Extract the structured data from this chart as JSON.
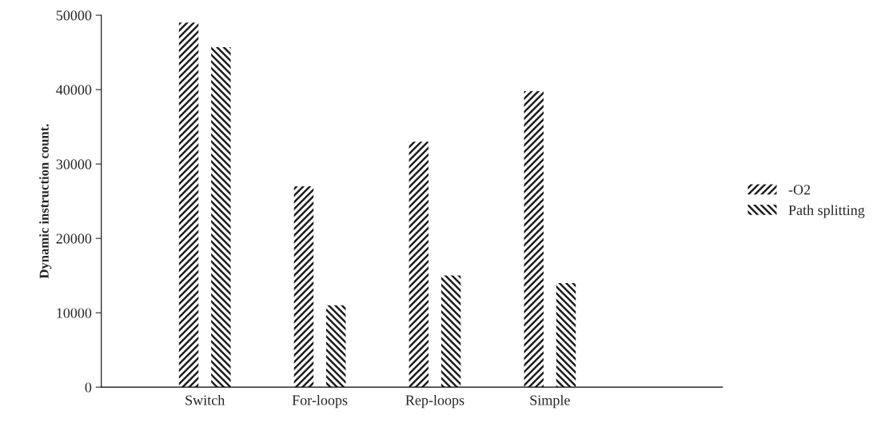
{
  "chart_data": {
    "type": "bar",
    "ylabel": "Dynamic instruction count.",
    "categories": [
      "Switch",
      "For-loops",
      "Rep-loops",
      "Simple"
    ],
    "series": [
      {
        "name": "-O2",
        "color": "#1a1a1a",
        "values": [
          49000,
          27000,
          33000,
          39800
        ]
      },
      {
        "name": "Path splitting",
        "color": "#1a1a1a",
        "values": [
          45700,
          11000,
          15000,
          14000
        ]
      }
    ],
    "ylim": [
      0,
      50000
    ],
    "yticks": [
      0,
      10000,
      20000,
      30000,
      40000,
      50000
    ],
    "grid": false,
    "legend": "right"
  }
}
